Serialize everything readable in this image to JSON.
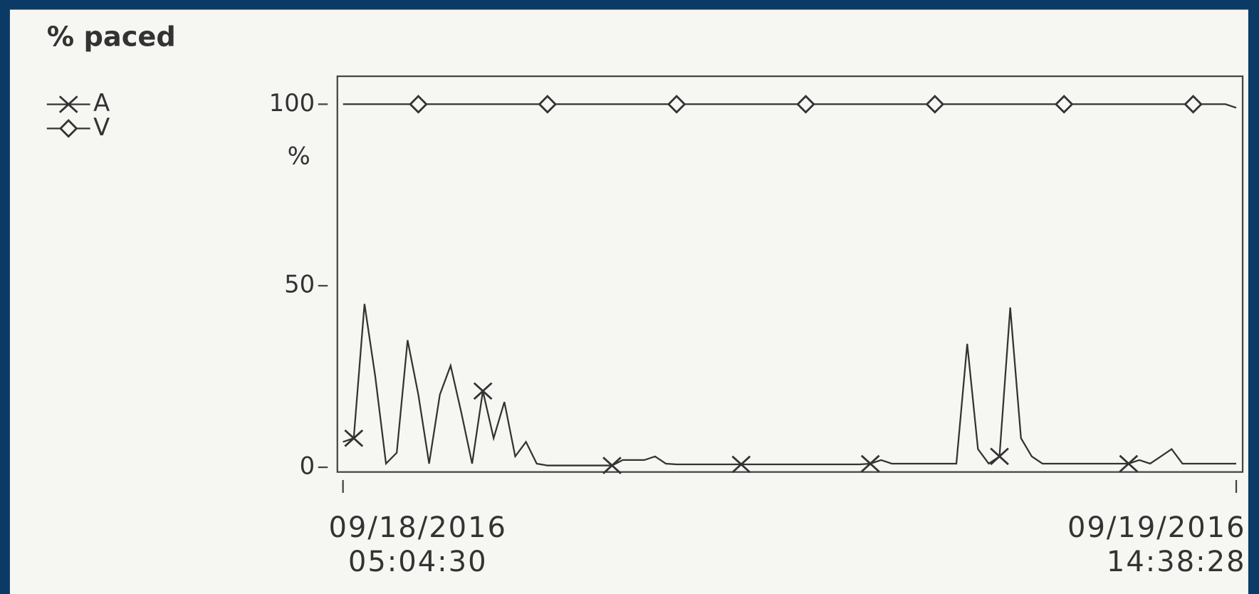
{
  "chart_data": {
    "type": "line",
    "title": "% paced",
    "y_label": "%",
    "categories": [
      "09/18/2016\n05:04:30",
      null,
      null,
      null,
      null,
      null,
      null,
      null,
      null,
      null,
      null,
      null,
      null,
      null,
      null,
      null,
      null,
      null,
      null,
      null,
      null,
      null,
      null,
      null,
      null,
      null,
      null,
      null,
      null,
      null,
      null,
      null,
      null,
      null,
      null,
      null,
      null,
      null,
      null,
      null,
      null,
      null,
      null,
      null,
      null,
      null,
      null,
      null,
      null,
      null,
      null,
      null,
      null,
      null,
      null,
      null,
      null,
      null,
      null,
      null,
      null,
      null,
      null,
      null,
      null,
      null,
      null,
      null,
      null,
      null,
      null,
      null,
      null,
      null,
      null,
      null,
      null,
      null,
      null,
      null,
      null,
      null,
      null,
      "09/19/2016\n14:38:28"
    ],
    "series": [
      {
        "name": "A",
        "color": "#333333",
        "marker": "x",
        "values": [
          7,
          8,
          45,
          25,
          1,
          4,
          35,
          20,
          1,
          20,
          28,
          15,
          1,
          21,
          8,
          18,
          3,
          7,
          1,
          0.5,
          0.5,
          0.5,
          0.5,
          0.5,
          0.5,
          0.5,
          2,
          2,
          2,
          3,
          1,
          0.8,
          0.8,
          0.8,
          0.8,
          0.8,
          0.8,
          0.8,
          0.8,
          0.8,
          0.8,
          0.8,
          0.8,
          0.8,
          0.8,
          0.8,
          0.8,
          0.8,
          0.8,
          1,
          2,
          1,
          1,
          1,
          1,
          1,
          1,
          1,
          34,
          5,
          1,
          3,
          44,
          8,
          3,
          1,
          1,
          1,
          1,
          1,
          1,
          1,
          1,
          1,
          2,
          1,
          3,
          5,
          1,
          1,
          1,
          1,
          1,
          1
        ]
      },
      {
        "name": "V",
        "color": "#333333",
        "marker": "diamond",
        "values": [
          100,
          100,
          100,
          100,
          100,
          100,
          100,
          100,
          100,
          100,
          100,
          100,
          100,
          100,
          100,
          100,
          100,
          100,
          100,
          100,
          100,
          100,
          100,
          100,
          100,
          100,
          100,
          100,
          100,
          100,
          100,
          100,
          100,
          100,
          100,
          100,
          100,
          100,
          100,
          100,
          100,
          100,
          100,
          100,
          100,
          100,
          100,
          100,
          100,
          100,
          100,
          100,
          100,
          100,
          100,
          100,
          100,
          100,
          100,
          100,
          100,
          100,
          100,
          100,
          100,
          100,
          100,
          100,
          100,
          100,
          100,
          100,
          100,
          100,
          100,
          100,
          100,
          100,
          100,
          100,
          100,
          100,
          100,
          99
        ]
      }
    ],
    "ylim": [
      -1.3,
      107.7
    ],
    "yticks": [
      0,
      50,
      100
    ],
    "grid": false,
    "legend": "top-left"
  }
}
